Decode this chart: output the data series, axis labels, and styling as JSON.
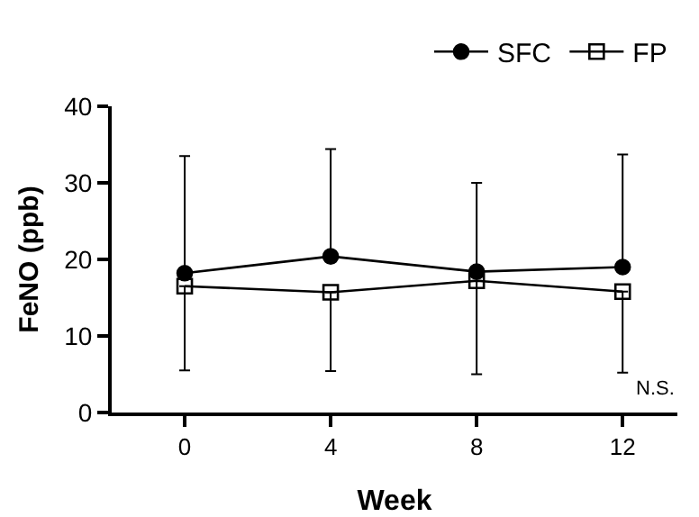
{
  "chart_data": {
    "type": "line",
    "xlabel": "Week",
    "ylabel": "FeNO (ppb)",
    "x": [
      0,
      4,
      8,
      12
    ],
    "series": [
      {
        "name": "SFC",
        "color": "#000000",
        "marker": "circle",
        "values": [
          18.2,
          20.4,
          18.4,
          19.0
        ],
        "errors": [
          [
            18.2,
            33.5
          ],
          [
            20.4,
            34.4
          ],
          [
            18.4,
            30.0
          ],
          [
            19.0,
            33.7
          ]
        ]
      },
      {
        "name": "FP",
        "color": "#000000",
        "marker": "square",
        "values": [
          16.5,
          15.7,
          17.2,
          15.8
        ],
        "errors": [
          [
            5.5,
            16.5
          ],
          [
            5.4,
            15.7
          ],
          [
            5.0,
            17.2
          ],
          [
            5.2,
            15.8
          ]
        ]
      }
    ],
    "xlim": [
      -2,
      13.5
    ],
    "xticks": [
      0,
      4,
      8,
      12
    ],
    "ylim": [
      0,
      40
    ],
    "yticks": [
      0,
      10,
      20,
      30,
      40
    ],
    "grid": false,
    "legend": "top right",
    "annotations": [
      "N.S."
    ]
  }
}
